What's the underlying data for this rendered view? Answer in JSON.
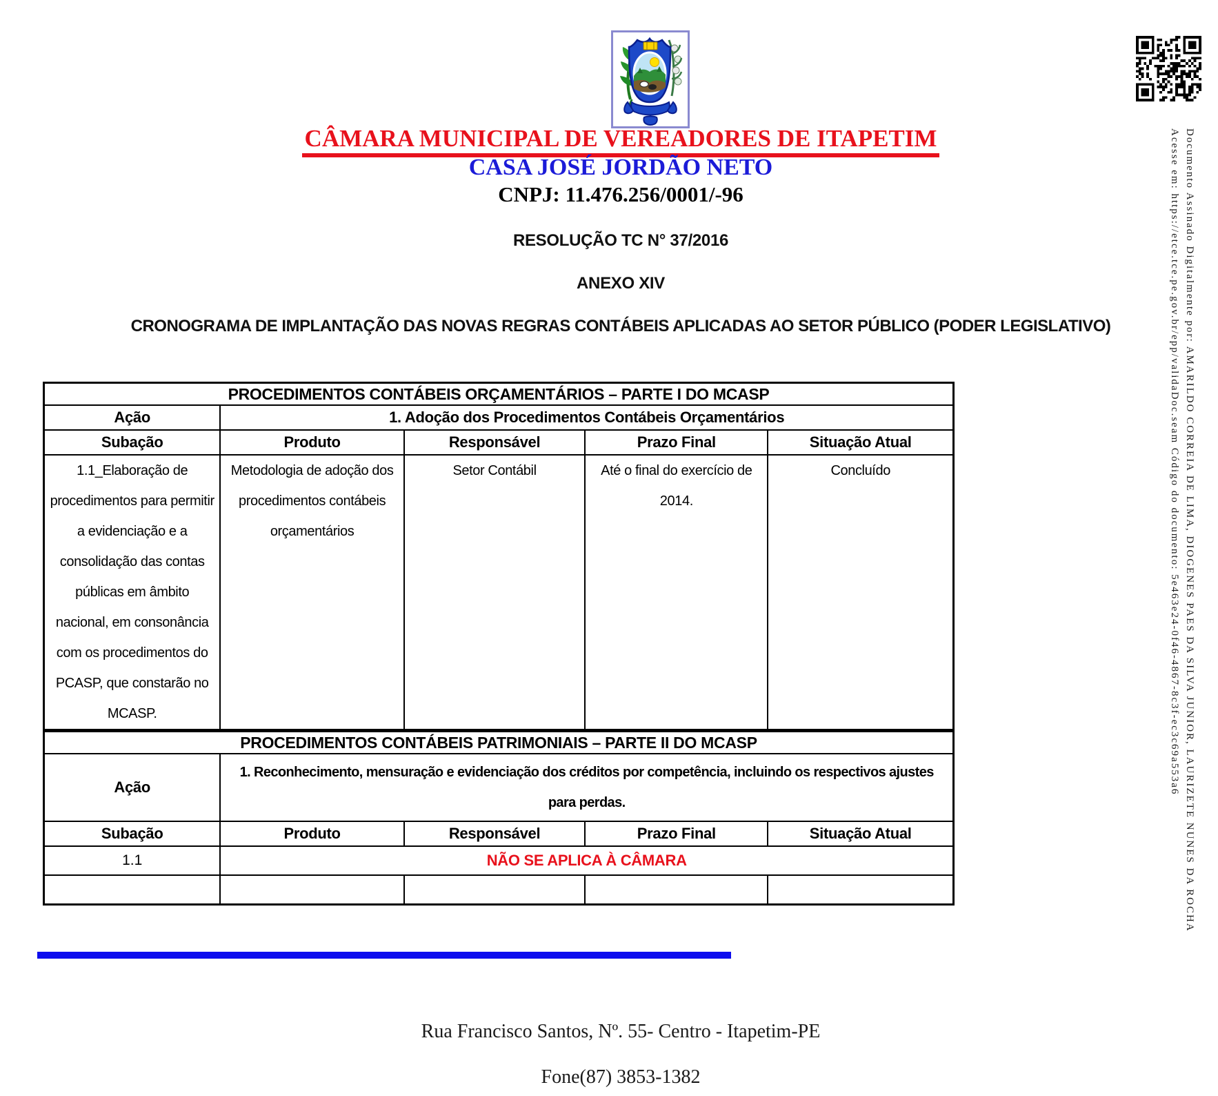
{
  "colors": {
    "accent_red": "#e8111c",
    "accent_blue": "#1b1bd8",
    "line_blue": "#0d0dee"
  },
  "header": {
    "org_name": "CÂMARA MUNICIPAL DE VEREADORES DE ITAPETIM",
    "house_name": "CASA JOSÉ JORDÃO NETO",
    "cnpj": "CNPJ: 11.476.256/0001/-96",
    "resolution": "RESOLUÇÃO TC N° 37/2016",
    "annex": "ANEXO XIV",
    "schedule_title": "CRONOGRAMA DE IMPLANTAÇÃO DAS NOVAS REGRAS CONTÁBEIS APLICADAS AO SETOR PÚBLICO (PODER LEGISLATIVO)"
  },
  "table1": {
    "title": "PROCEDIMENTOS CONTÁBEIS ORÇAMENTÁRIOS – PARTE I DO MCASP",
    "acao_label": "Ação",
    "acao_value": "1. Adoção dos Procedimentos Contábeis Orçamentários",
    "columns": [
      "Subação",
      "Produto",
      "Responsável",
      "Prazo Final",
      "Situação Atual"
    ],
    "rows": [
      {
        "subacao": "1.1_Elaboração de procedimentos para permitir a evidenciação e a consolidação das contas públicas em âmbito nacional, em consonância com os procedimentos do PCASP, que constarão no MCASP.",
        "produto": "Metodologia de adoção dos procedimentos contábeis orçamentários",
        "responsavel": "Setor Contábil",
        "prazo_final": "Até o final do exercício de 2014.",
        "situacao_atual": "Concluído"
      }
    ]
  },
  "table2": {
    "title": "PROCEDIMENTOS CONTÁBEIS PATRIMONIAIS – PARTE II DO MCASP",
    "acao_label": "Ação",
    "acao_value": "1. Reconhecimento, mensuração e evidenciação dos créditos por competência, incluindo os respectivos ajustes para perdas.",
    "columns": [
      "Subação",
      "Produto",
      "Responsável",
      "Prazo Final",
      "Situação Atual"
    ],
    "rows": [
      {
        "subacao": "1.1",
        "span_text": "NÃO SE APLICA À CÂMARA"
      }
    ]
  },
  "footer": {
    "address": "Rua Francisco Santos, Nº. 55- Centro - Itapetim-PE",
    "phone": "Fone(87) 3853-1382"
  },
  "signature_strip": {
    "line1": "Documento Assinado Digitalmente por: AMARILDO CORREIA DE LIMA, DIOGENES PAES DA SILVA JUNIOR, LAURIZETE NUNES DA ROCHA",
    "line2": "Acesse em: https://etce.tce.pe.gov.br/epp/validaDoc.seam Código do documento: 5e463e24-0f46-4867-8c3f-ec3c69a553a6"
  }
}
